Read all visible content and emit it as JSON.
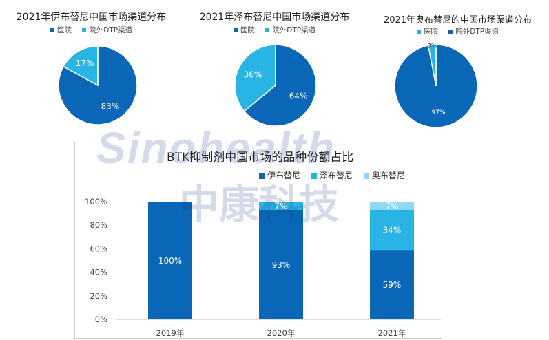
{
  "pies": [
    {
      "title": "2021年伊布替尼中国市场渠道分布",
      "legend": [
        {
          "label": "医院",
          "color": "#0a67b8"
        },
        {
          "label": "院外DTP渠道",
          "color": "#29b4e6"
        }
      ],
      "slices": [
        {
          "label": "83%",
          "value": 83,
          "color": "#0a67b8"
        },
        {
          "label": "17%",
          "value": 17,
          "color": "#29b4e6"
        }
      ]
    },
    {
      "title": "2021年泽布替尼中国市场渠道分布",
      "legend": [
        {
          "label": "医院",
          "color": "#0a67b8"
        },
        {
          "label": "院外DTP渠道",
          "color": "#29b4e6"
        }
      ],
      "slices": [
        {
          "label": "64%",
          "value": 64,
          "color": "#0a67b8"
        },
        {
          "label": "36%",
          "value": 36,
          "color": "#29b4e6"
        }
      ]
    },
    {
      "title": "2021年奥布替尼的中国市场渠道分布",
      "legend": [
        {
          "label": "医院",
          "color": "#29b4e6"
        },
        {
          "label": "院外DTP渠道",
          "color": "#0a67b8"
        }
      ],
      "slices": [
        {
          "label": "97%",
          "value": 97,
          "color": "#0a67b8"
        },
        {
          "label": "3%",
          "value": 3,
          "color": "#29b4e6"
        }
      ]
    }
  ],
  "watermark": {
    "text_en": "Sinohealth",
    "text_cn": "中康科技"
  },
  "chart_data": {
    "type": "bar",
    "stacked": true,
    "title": "BTK抑制剂中国市场的品种份额占比",
    "categories": [
      "2019年",
      "2020年",
      "2021年"
    ],
    "series": [
      {
        "name": "伊布替尼",
        "color": "#0a67b8",
        "values": [
          100,
          93,
          59
        ],
        "labels": [
          "100%",
          "93%",
          "59%"
        ]
      },
      {
        "name": "泽布替尼",
        "color": "#29b4e6",
        "values": [
          0,
          7,
          34
        ],
        "labels": [
          "",
          "7%",
          "34%"
        ]
      },
      {
        "name": "奥布替尼",
        "color": "#8dd8f4",
        "values": [
          0,
          0,
          7
        ],
        "labels": [
          "",
          "",
          "7%"
        ]
      }
    ],
    "yticks": [
      "0%",
      "20%",
      "40%",
      "60%",
      "80%",
      "100%"
    ],
    "ylim": [
      0,
      100
    ],
    "legend_position": "top-right",
    "grid": false
  }
}
